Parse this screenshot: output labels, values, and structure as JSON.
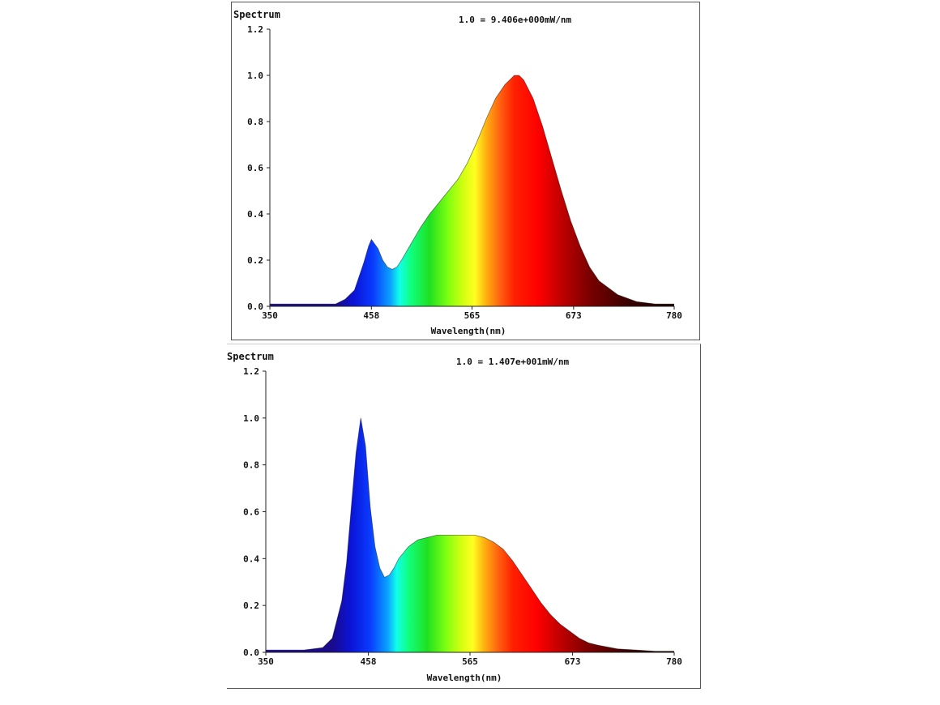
{
  "chart_data": [
    {
      "type": "area",
      "ylabel": "Spectrum",
      "xlabel": "Wavelength(nm)",
      "scale_note": "1.0 = 9.406e+000mW/nm",
      "x_ticks": [
        "350",
        "458",
        "565",
        "673",
        "780"
      ],
      "y_ticks": [
        "0.0",
        "0.2",
        "0.4",
        "0.6",
        "0.8",
        "1.0",
        "1.2"
      ],
      "xlim": [
        350,
        780
      ],
      "ylim": [
        0,
        1.2
      ],
      "x": [
        350,
        380,
        400,
        420,
        430,
        440,
        450,
        455,
        458,
        465,
        470,
        475,
        480,
        485,
        490,
        500,
        510,
        520,
        530,
        540,
        550,
        560,
        570,
        580,
        590,
        600,
        610,
        615,
        620,
        630,
        640,
        650,
        660,
        670,
        680,
        690,
        700,
        720,
        740,
        760,
        780
      ],
      "values": [
        0.01,
        0.01,
        0.01,
        0.01,
        0.03,
        0.07,
        0.19,
        0.26,
        0.29,
        0.25,
        0.2,
        0.17,
        0.16,
        0.17,
        0.2,
        0.27,
        0.34,
        0.4,
        0.45,
        0.5,
        0.55,
        0.62,
        0.71,
        0.81,
        0.9,
        0.96,
        1.0,
        1.0,
        0.98,
        0.9,
        0.78,
        0.64,
        0.5,
        0.37,
        0.26,
        0.17,
        0.11,
        0.05,
        0.02,
        0.01,
        0.01
      ]
    },
    {
      "type": "area",
      "ylabel": "Spectrum",
      "xlabel": "Wavelength(nm)",
      "scale_note": "1.0 = 1.407e+001mW/nm",
      "x_ticks": [
        "350",
        "458",
        "565",
        "673",
        "780"
      ],
      "y_ticks": [
        "0.0",
        "0.2",
        "0.4",
        "0.6",
        "0.8",
        "1.0",
        "1.2"
      ],
      "xlim": [
        350,
        780
      ],
      "ylim": [
        0,
        1.2
      ],
      "x": [
        350,
        390,
        410,
        420,
        430,
        435,
        440,
        445,
        450,
        455,
        460,
        465,
        470,
        475,
        480,
        485,
        490,
        500,
        510,
        520,
        530,
        540,
        550,
        560,
        570,
        580,
        590,
        600,
        610,
        620,
        630,
        640,
        650,
        660,
        670,
        680,
        690,
        700,
        720,
        740,
        760,
        780
      ],
      "values": [
        0.01,
        0.01,
        0.02,
        0.06,
        0.22,
        0.38,
        0.62,
        0.85,
        1.0,
        0.88,
        0.62,
        0.45,
        0.36,
        0.32,
        0.33,
        0.36,
        0.4,
        0.45,
        0.48,
        0.49,
        0.5,
        0.5,
        0.5,
        0.5,
        0.5,
        0.49,
        0.47,
        0.44,
        0.39,
        0.33,
        0.27,
        0.21,
        0.16,
        0.12,
        0.09,
        0.06,
        0.04,
        0.03,
        0.015,
        0.01,
        0.005,
        0.005
      ]
    }
  ]
}
